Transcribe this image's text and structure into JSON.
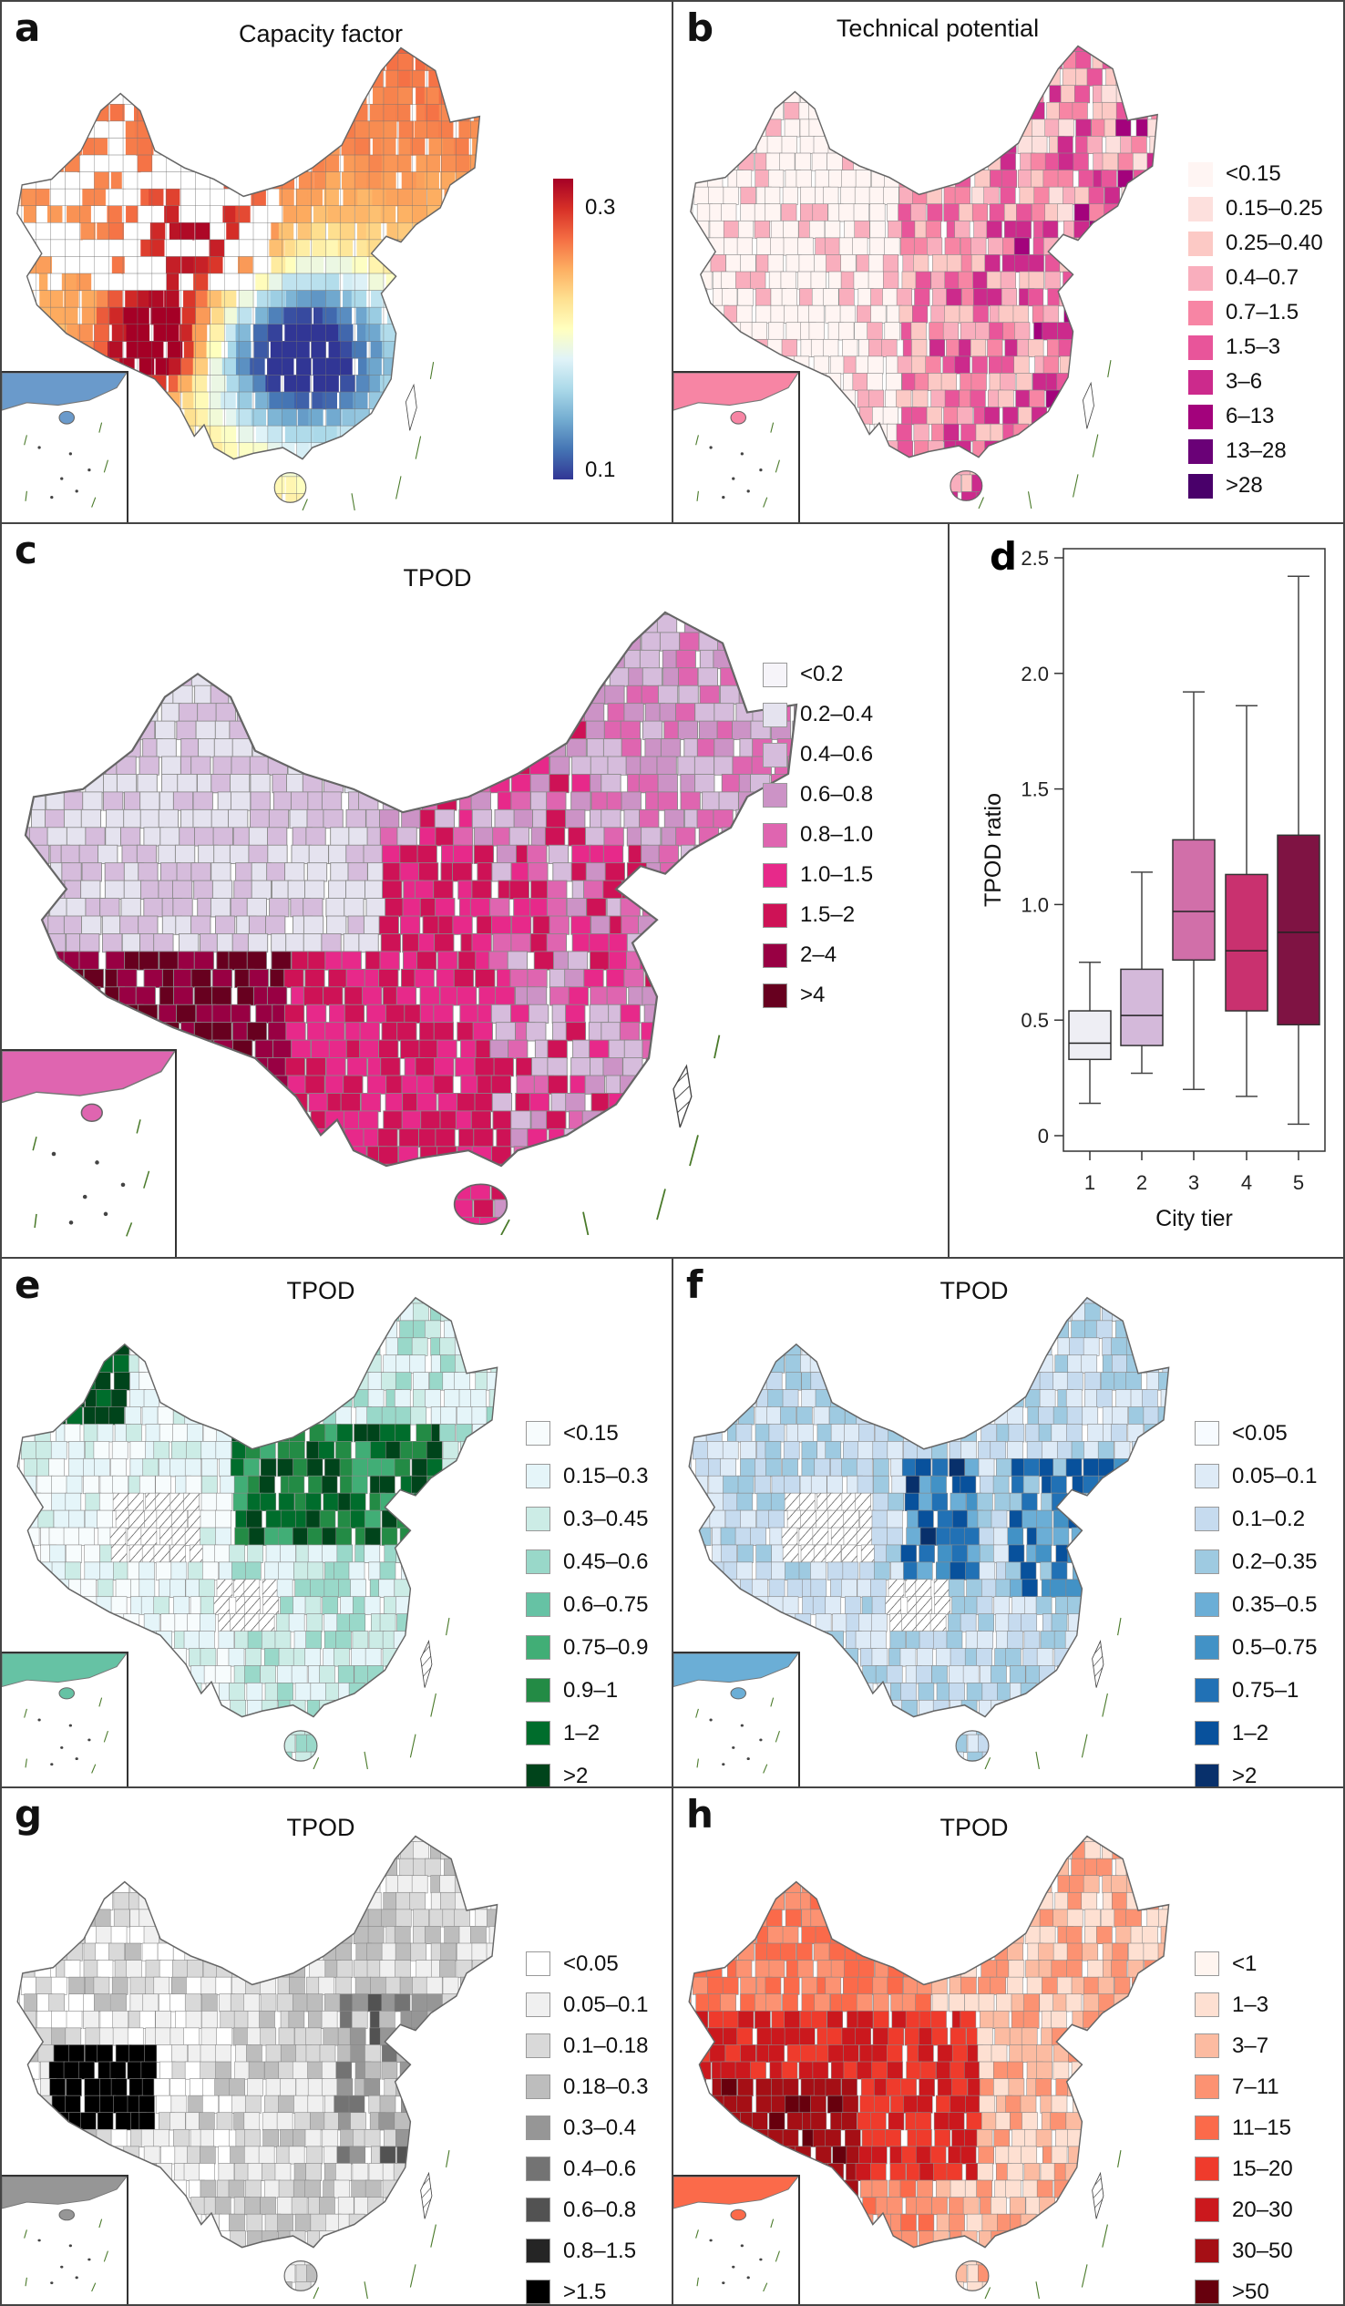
{
  "panels": {
    "a": {
      "letter": "a",
      "title": "Capacity factor",
      "colorbar": {
        "max_label": "0.3",
        "min_label": "0.1",
        "range": [
          0.1,
          0.3
        ],
        "colors": [
          "#313695",
          "#4575b4",
          "#74add1",
          "#abd9e9",
          "#e0f3f8",
          "#ffffbf",
          "#fee090",
          "#fdae61",
          "#f46d43",
          "#d73027",
          "#a50026"
        ]
      }
    },
    "b": {
      "letter": "b",
      "title": "Technical potential",
      "legend": [
        {
          "label": "<0.15",
          "color": "#fff5f3"
        },
        {
          "label": "0.15–0.25",
          "color": "#fde0dd"
        },
        {
          "label": "0.25–0.40",
          "color": "#fcc9c5"
        },
        {
          "label": "0.4–0.7",
          "color": "#f9aebd"
        },
        {
          "label": "0.7–1.5",
          "color": "#f785a4"
        },
        {
          "label": "1.5–3",
          "color": "#e8559a"
        },
        {
          "label": "3–6",
          "color": "#cc2a8c"
        },
        {
          "label": "6–13",
          "color": "#a3027c"
        },
        {
          "label": "13–28",
          "color": "#6a0177"
        },
        {
          "label": ">28",
          "color": "#49006a"
        }
      ]
    },
    "c": {
      "letter": "c",
      "title": "TPOD",
      "legend": [
        {
          "label": "<0.2",
          "color": "#f6f4f9"
        },
        {
          "label": "0.2–0.4",
          "color": "#e5e3ef"
        },
        {
          "label": "0.4–0.6",
          "color": "#d6bcdc"
        },
        {
          "label": "0.6–0.8",
          "color": "#cc93c6"
        },
        {
          "label": "0.8–1.0",
          "color": "#df65b0"
        },
        {
          "label": "1.0–1.5",
          "color": "#e7298a"
        },
        {
          "label": "1.5–2",
          "color": "#ce1256"
        },
        {
          "label": "2–4",
          "color": "#980043"
        },
        {
          "label": ">4",
          "color": "#67001f"
        }
      ]
    },
    "d": {
      "letter": "d"
    },
    "e": {
      "letter": "e",
      "title": "TPOD",
      "legend": [
        {
          "label": "<0.15",
          "color": "#f7fcfd"
        },
        {
          "label": "0.15–0.3",
          "color": "#e5f5f9"
        },
        {
          "label": "0.3–0.45",
          "color": "#ccece6"
        },
        {
          "label": "0.45–0.6",
          "color": "#99d8c9"
        },
        {
          "label": "0.6–0.75",
          "color": "#66c2a4"
        },
        {
          "label": "0.75–0.9",
          "color": "#41ae76"
        },
        {
          "label": "0.9–1",
          "color": "#238b45"
        },
        {
          "label": "1–2",
          "color": "#006d2c"
        },
        {
          "label": ">2",
          "color": "#00441b"
        }
      ]
    },
    "f": {
      "letter": "f",
      "title": "TPOD",
      "legend": [
        {
          "label": "<0.05",
          "color": "#f7fbff"
        },
        {
          "label": "0.05–0.1",
          "color": "#deebf7"
        },
        {
          "label": "0.1–0.2",
          "color": "#c6dbef"
        },
        {
          "label": "0.2–0.35",
          "color": "#9ecae1"
        },
        {
          "label": "0.35–0.5",
          "color": "#6baed6"
        },
        {
          "label": "0.5–0.75",
          "color": "#4292c6"
        },
        {
          "label": "0.75–1",
          "color": "#2171b5"
        },
        {
          "label": "1–2",
          "color": "#08519c"
        },
        {
          "label": ">2",
          "color": "#08306b"
        }
      ]
    },
    "g": {
      "letter": "g",
      "title": "TPOD",
      "legend": [
        {
          "label": "<0.05",
          "color": "#ffffff"
        },
        {
          "label": "0.05–0.1",
          "color": "#f0f0f0"
        },
        {
          "label": "0.1–0.18",
          "color": "#d9d9d9"
        },
        {
          "label": "0.18–0.3",
          "color": "#bdbdbd"
        },
        {
          "label": "0.3–0.4",
          "color": "#969696"
        },
        {
          "label": "0.4–0.6",
          "color": "#737373"
        },
        {
          "label": "0.6–0.8",
          "color": "#525252"
        },
        {
          "label": "0.8–1.5",
          "color": "#252525"
        },
        {
          "label": ">1.5",
          "color": "#000000"
        }
      ]
    },
    "h": {
      "letter": "h",
      "title": "TPOD",
      "legend": [
        {
          "label": "<1",
          "color": "#fff5f0"
        },
        {
          "label": "1–3",
          "color": "#fee0d2"
        },
        {
          "label": "3–7",
          "color": "#fcbba1"
        },
        {
          "label": "7–11",
          "color": "#fc9272"
        },
        {
          "label": "11–15",
          "color": "#fb6a4a"
        },
        {
          "label": "15–20",
          "color": "#ef3b2c"
        },
        {
          "label": "20–30",
          "color": "#cb181d"
        },
        {
          "label": "30–50",
          "color": "#a50f15"
        },
        {
          "label": ">50",
          "color": "#67000d"
        }
      ]
    }
  },
  "chart_data": {
    "type": "box",
    "xlabel": "City tier",
    "ylabel": "TPOD ratio",
    "categories": [
      "1",
      "2",
      "3",
      "4",
      "5"
    ],
    "ylim": [
      0,
      2.5
    ],
    "yticks": [
      "0",
      "0.5",
      "1.0",
      "1.5",
      "2.0",
      "2.5"
    ],
    "yticks_values": [
      0,
      0.5,
      1.0,
      1.5,
      2.0,
      2.5
    ],
    "grid": false,
    "boxes": [
      {
        "tier": "1",
        "whisker_low": 0.14,
        "q1": 0.33,
        "median": 0.4,
        "q3": 0.54,
        "whisker_high": 0.75,
        "color": "#eeeef4"
      },
      {
        "tier": "2",
        "whisker_low": 0.27,
        "q1": 0.39,
        "median": 0.52,
        "q3": 0.72,
        "whisker_high": 1.14,
        "color": "#d4b9da"
      },
      {
        "tier": "3",
        "whisker_low": 0.2,
        "q1": 0.76,
        "median": 0.97,
        "q3": 1.28,
        "whisker_high": 1.92,
        "color": "#d16fa9"
      },
      {
        "tier": "4",
        "whisker_low": 0.17,
        "q1": 0.54,
        "median": 0.8,
        "q3": 1.13,
        "whisker_high": 1.86,
        "color": "#c9316f"
      },
      {
        "tier": "5",
        "whisker_low": 0.05,
        "q1": 0.48,
        "median": 0.88,
        "q3": 1.3,
        "whisker_high": 2.42,
        "color": "#7f1343"
      }
    ]
  }
}
